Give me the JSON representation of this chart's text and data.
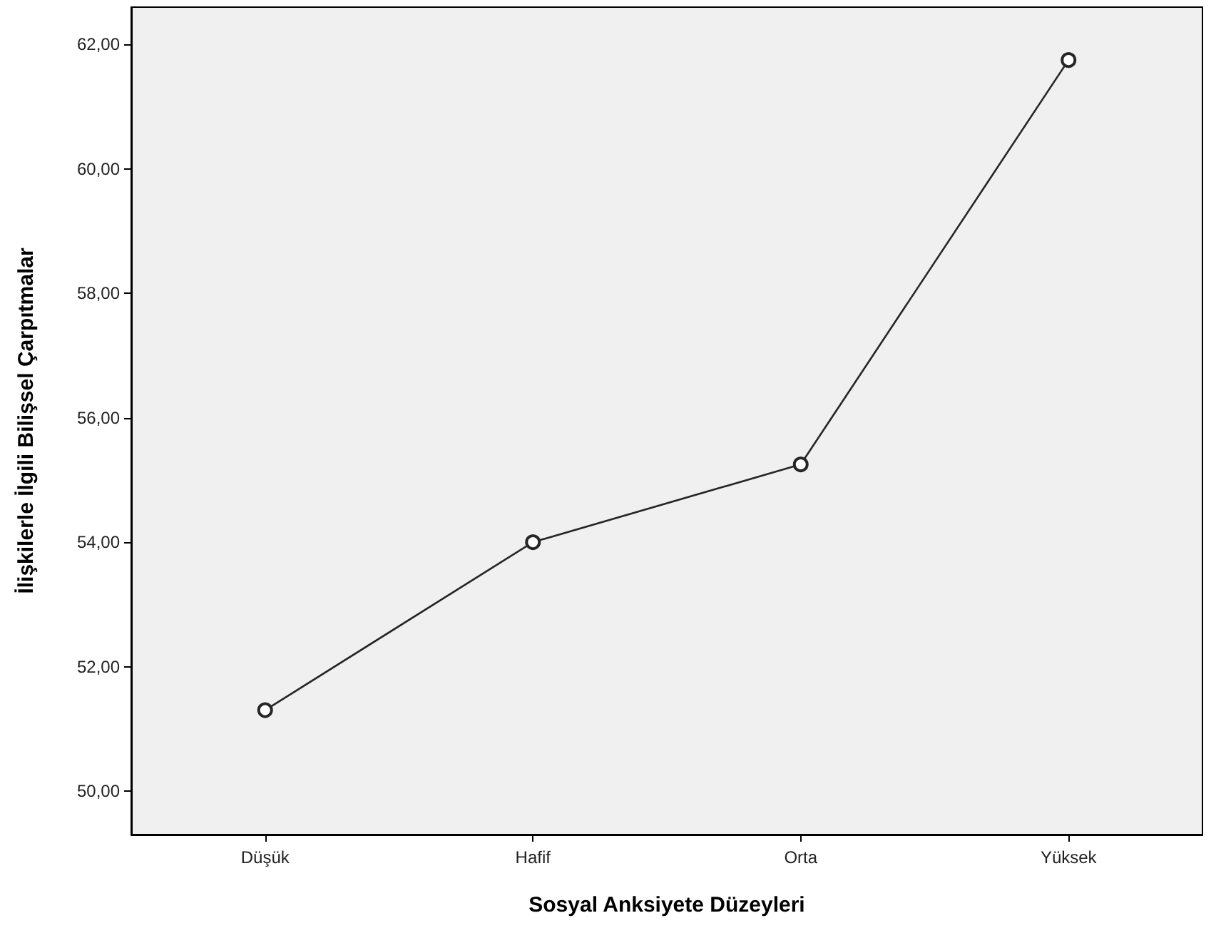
{
  "chart_data": {
    "type": "line",
    "xlabel": "Sosyal Anksiyete Düzeyleri",
    "ylabel": "İlişkilerle İlgili Bilişsel Çarpıtmalar",
    "categories": [
      "Düşük",
      "Hafif",
      "Orta",
      "Yüksek"
    ],
    "series": [
      {
        "color": "#262626",
        "values": [
          51.3,
          54.0,
          55.25,
          61.75
        ]
      }
    ],
    "ylim": [
      49.3,
      62.6
    ],
    "yticks": [
      {
        "value": 50,
        "label": "50,00"
      },
      {
        "value": 52,
        "label": "52,00"
      },
      {
        "value": 54,
        "label": "54,00"
      },
      {
        "value": 56,
        "label": "56,00"
      },
      {
        "value": 58,
        "label": "58,00"
      },
      {
        "value": 60,
        "label": "60,00"
      },
      {
        "value": 62,
        "label": "62,00"
      }
    ],
    "grid": false,
    "marker": "circle",
    "line_style": "solid"
  }
}
